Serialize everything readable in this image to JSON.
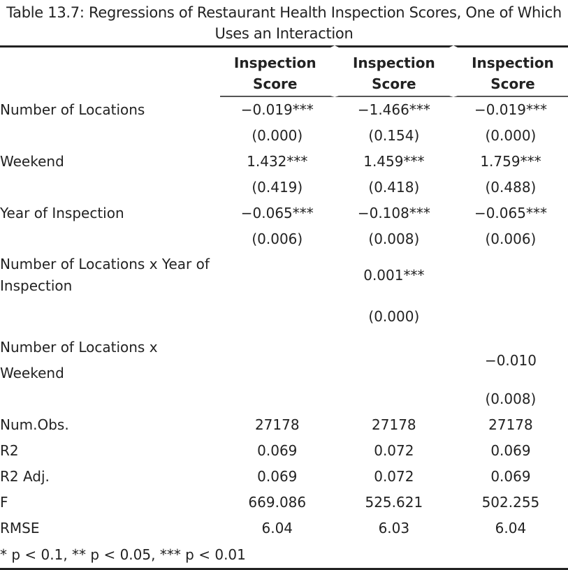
{
  "caption": "Table 13.7: Regressions of Restaurant Health Inspection Scores, One of Which Uses an Interaction",
  "header": {
    "col1": "Inspection Score",
    "col2": "Inspection Score",
    "col3": "Inspection Score"
  },
  "rows": [
    {
      "label": "Number of Locations",
      "c1": "−0.019***",
      "c2": "−1.466***",
      "c3": "−0.019***"
    },
    {
      "label": "",
      "c1": "(0.000)",
      "c2": "(0.154)",
      "c3": "(0.000)"
    },
    {
      "label": "Weekend",
      "c1": "1.432***",
      "c2": "1.459***",
      "c3": "1.759***"
    },
    {
      "label": "",
      "c1": "(0.419)",
      "c2": "(0.418)",
      "c3": "(0.488)"
    },
    {
      "label": "Year of Inspection",
      "c1": "−0.065***",
      "c2": "−0.108***",
      "c3": "−0.065***"
    },
    {
      "label": "",
      "c1": "(0.006)",
      "c2": "(0.008)",
      "c3": "(0.006)"
    },
    {
      "label": "Number of Locations x Year of Inspection",
      "c1": "",
      "c2": "0.001***",
      "c3": ""
    },
    {
      "label": "",
      "c1": "",
      "c2": "(0.000)",
      "c3": ""
    },
    {
      "label": "Number of Locations x Weekend",
      "c1": "",
      "c2": "",
      "c3": "−0.010"
    },
    {
      "label": "",
      "c1": "",
      "c2": "",
      "c3": "(0.008)"
    },
    {
      "label": "Num.Obs.",
      "c1": "27178",
      "c2": "27178",
      "c3": "27178"
    },
    {
      "label": "R2",
      "c1": "0.069",
      "c2": "0.072",
      "c3": "0.069"
    },
    {
      "label": "R2 Adj.",
      "c1": "0.069",
      "c2": "0.072",
      "c3": "0.069"
    },
    {
      "label": "F",
      "c1": "669.086",
      "c2": "525.621",
      "c3": "502.255"
    },
    {
      "label": "RMSE",
      "c1": "6.04",
      "c2": "6.03",
      "c3": "6.04"
    }
  ],
  "footnote": "* p < 0.1, ** p < 0.05, *** p < 0.01"
}
